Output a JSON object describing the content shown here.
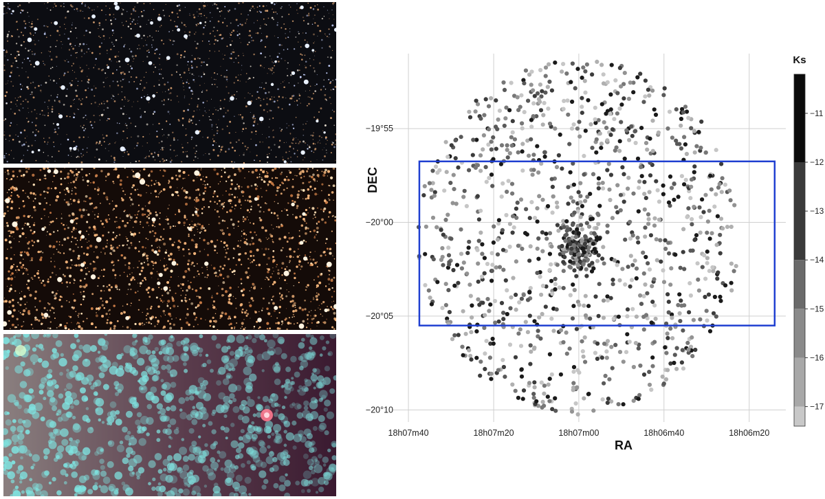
{
  "images": [
    {
      "name": "optical-field-image",
      "style": "optical"
    },
    {
      "name": "near-infrared-field-image",
      "style": "nir"
    },
    {
      "name": "mid-infrared-field-image",
      "style": "mir"
    }
  ],
  "chart_data": {
    "type": "scatter",
    "xlabel": "RA",
    "ylabel": "DEC",
    "x_ticks": [
      "18h07m40",
      "18h07m20",
      "18h07m00",
      "18h06m40",
      "18h06m20"
    ],
    "y_ticks": [
      "−19°55",
      "−20°00",
      "−20°05",
      "−20°10"
    ],
    "x_tick_values_deg": [
      271.9167,
      271.8333,
      271.75,
      271.6667,
      271.5833
    ],
    "y_tick_values_deg": [
      -19.9167,
      -20.0,
      -20.0833,
      -20.1667
    ],
    "xlim_deg": [
      271.9275,
      271.5475
    ],
    "ylim_deg": [
      -20.175,
      -19.85
    ],
    "colorbar": {
      "label": "Ks",
      "ticks": [
        "−11",
        "−12",
        "−13",
        "−14",
        "−15",
        "−16",
        "−17"
      ],
      "range": [
        -10.2,
        -17.4
      ],
      "bands": [
        {
          "from": -10.2,
          "to": -12.0,
          "color": "#0b0b0b"
        },
        {
          "from": -12.0,
          "to": -14.0,
          "color": "#3a3a3a"
        },
        {
          "from": -14.0,
          "to": -15.0,
          "color": "#6a6a6a"
        },
        {
          "from": -15.0,
          "to": -16.0,
          "color": "#8a8a8a"
        },
        {
          "from": -16.0,
          "to": -17.0,
          "color": "#a8a8a8"
        },
        {
          "from": -17.0,
          "to": -17.4,
          "color": "#c8c8c8"
        }
      ]
    },
    "field_center_deg": [
      271.75,
      -20.013
    ],
    "field_radius_deg": 0.158,
    "rectangle_deg": {
      "x1": 271.906,
      "x2": 271.5584,
      "y1": -19.9458,
      "y2": -20.0917
    },
    "rectangle_color": "#1f3fd1",
    "grid": true,
    "points_count": 1100,
    "note_points": "stars plotted as filled circles; cluster concentration near center"
  }
}
